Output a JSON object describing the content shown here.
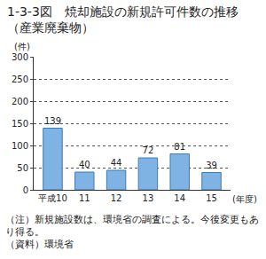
{
  "chart_data": {
    "type": "bar",
    "title": "1-3-3図　焼却施設の新規許可件数の推移（産業廃棄物）",
    "y_label": "(件)",
    "x_label": "(年度)",
    "categories": [
      "平成10",
      "11",
      "12",
      "13",
      "14",
      "15"
    ],
    "values": [
      139,
      40,
      44,
      72,
      81,
      39
    ],
    "color": "#7fb3e3",
    "ylim": [
      0,
      300
    ],
    "yticks": [
      0,
      50,
      100,
      150,
      200,
      250,
      300
    ],
    "grid": true,
    "data_labels": true,
    "annotations": [
      "（注）新規施設数は、環境省の調査による。今後変更もあり得る。",
      "（資料）環境省"
    ]
  }
}
